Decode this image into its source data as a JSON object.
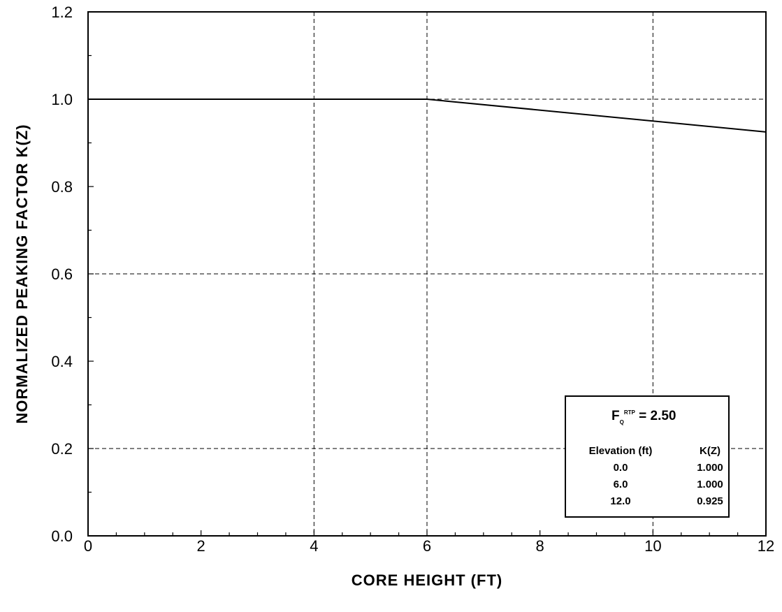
{
  "chart_data": {
    "type": "line",
    "title": "",
    "xlabel": "CORE HEIGHT (FT)",
    "ylabel": "NORMALIZED PEAKING FACTOR K(Z)",
    "xlim": [
      0,
      12
    ],
    "ylim": [
      0,
      1.2
    ],
    "xticks": [
      "0",
      "2",
      "4",
      "6",
      "8",
      "10",
      "12"
    ],
    "yticks": [
      "0.0",
      "0.2",
      "0.4",
      "0.6",
      "0.8",
      "1.0",
      "1.2"
    ],
    "grid": "dashed at x = 4, 6, 10 and y = 0.2, 0.6, 1.0",
    "series": [
      {
        "x": [
          0,
          6,
          12
        ],
        "y": [
          1.0,
          1.0,
          0.925
        ]
      }
    ],
    "inset_table": {
      "title_main": "F",
      "title_sub": "Q",
      "title_sup": "RTP",
      "title_value": " = 2.50",
      "headers": [
        "Elevation (ft)",
        "K(Z)"
      ],
      "rows": [
        [
          "0.0",
          "1.000"
        ],
        [
          "6.0",
          "1.000"
        ],
        [
          "12.0",
          "0.925"
        ]
      ]
    }
  }
}
